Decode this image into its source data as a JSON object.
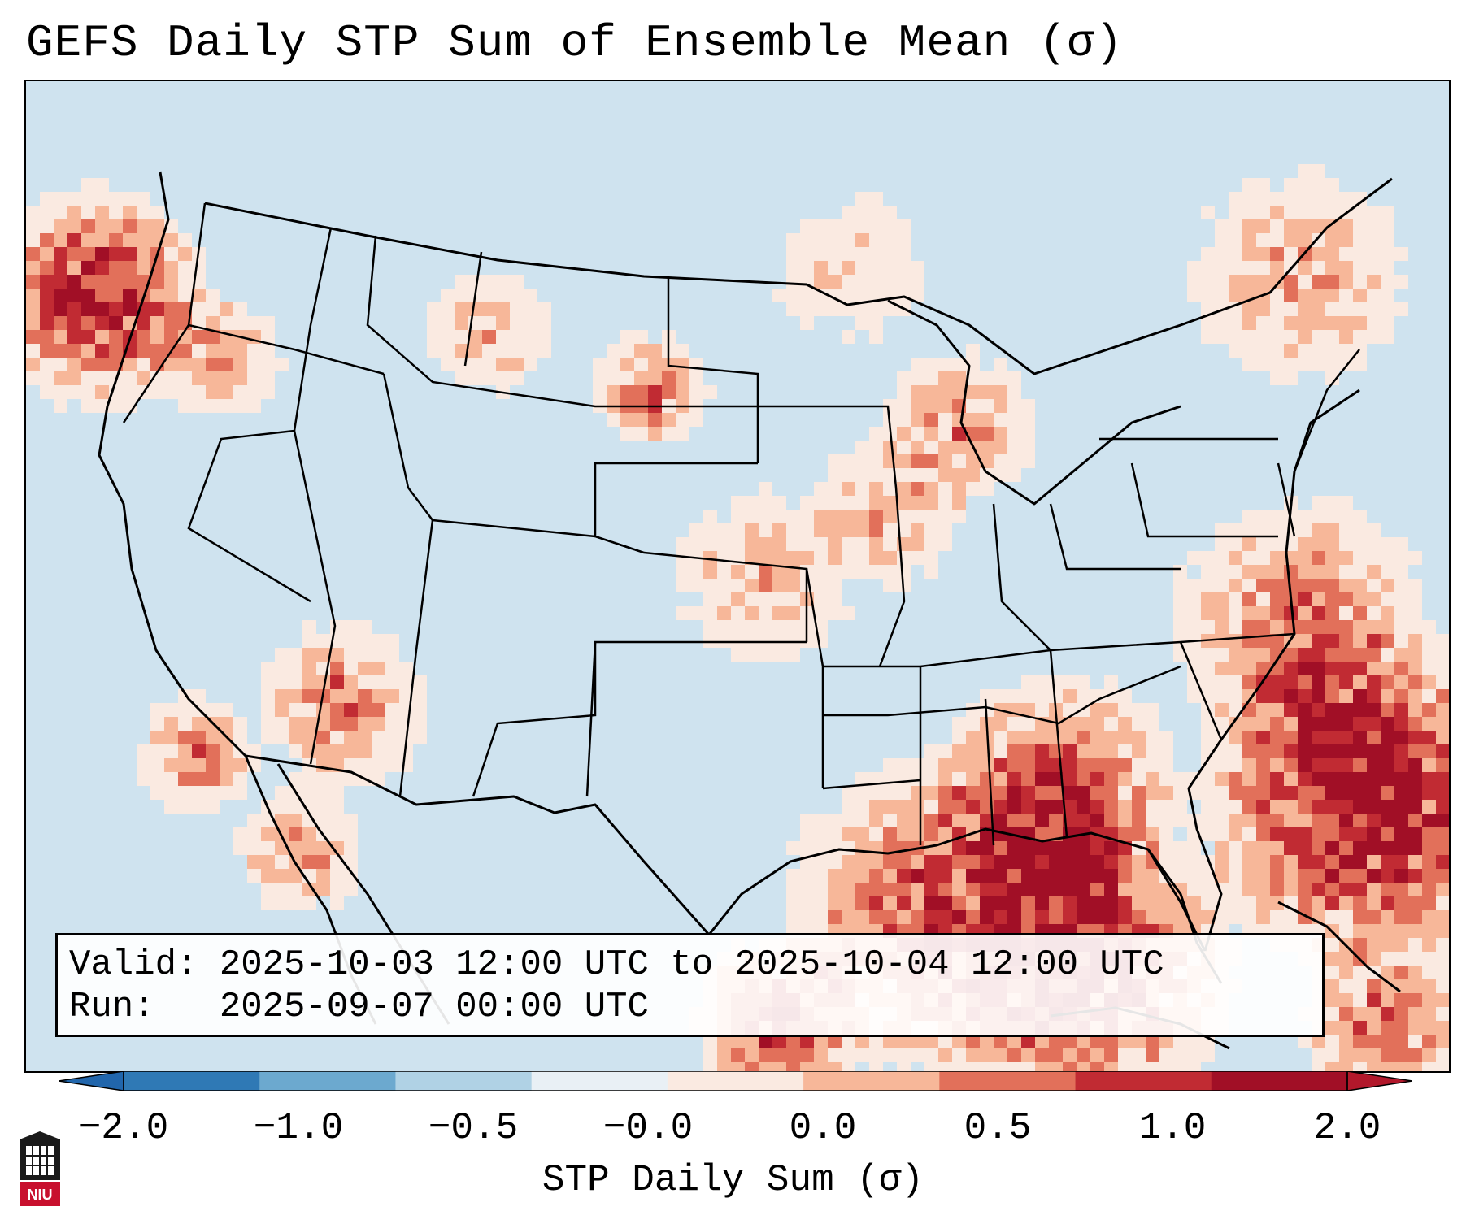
{
  "title": "GEFS Daily STP Sum of Ensemble Mean (σ)",
  "info": {
    "valid_line": "Valid: 2025-10-03 12:00 UTC to 2025-10-04 12:00 UTC",
    "run_line": "Run:   2025-09-07 00:00 UTC"
  },
  "colorbar": {
    "label": "STP Daily Sum (σ)",
    "ticks": [
      "−2.0",
      "−1.0",
      "−0.5",
      "−0.0",
      "0.0",
      "0.5",
      "1.0",
      "2.0"
    ],
    "colors": [
      "#2f79b5",
      "#6ca9cf",
      "#b0d2e5",
      "#e9f0f5",
      "#faeae1",
      "#f7b799",
      "#e2705a",
      "#c12b33",
      "#a10f26"
    ],
    "under_color": "#2166ac",
    "over_color": "#b2182b"
  },
  "map": {
    "background_color": "#cfe3ef",
    "region": "Contiguous United States",
    "field": "STP daily sum anomaly (σ)"
  },
  "logo": {
    "text": "NIU"
  }
}
